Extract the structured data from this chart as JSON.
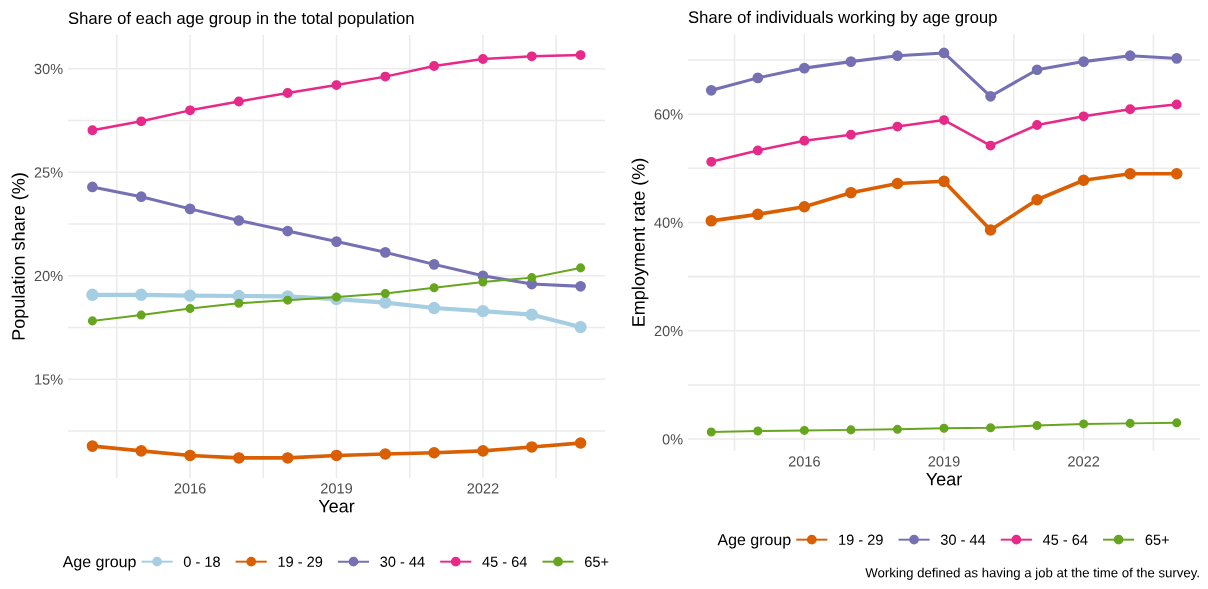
{
  "chart_data": [
    {
      "type": "line",
      "title": "Share of each age group in the total population",
      "xlabel": "Year",
      "ylabel": "Population share (%)",
      "legend_title": "Age group",
      "legend": "bottom",
      "marker": "circle",
      "line_style": "solid",
      "grid": true,
      "x": [
        2014,
        2015,
        2016,
        2017,
        2018,
        2019,
        2020,
        2021,
        2022,
        2023,
        2024
      ],
      "xlim": [
        2013.5,
        2024.5
      ],
      "xticks": [
        {
          "value": 2014.5,
          "label": null
        },
        2016,
        {
          "value": 2017.5,
          "label": null
        },
        2019,
        {
          "value": 2020.5,
          "label": null
        },
        2022,
        {
          "value": 2023.5,
          "label": null
        }
      ],
      "ylim": [
        10.23,
        31.63
      ],
      "yticks": [
        {
          "value": 12.5,
          "label": null
        },
        {
          "value": 15,
          "label": "15%"
        },
        {
          "value": 17.5,
          "label": null
        },
        {
          "value": 20,
          "label": "20%"
        },
        {
          "value": 22.5,
          "label": null
        },
        {
          "value": 25,
          "label": "25%"
        },
        {
          "value": 27.5,
          "label": null
        },
        {
          "value": 30,
          "label": "30%"
        }
      ],
      "series": [
        {
          "name": "0 - 18",
          "color": "#a6cee3",
          "values": [
            19.08,
            19.08,
            19.04,
            19.02,
            19.0,
            18.87,
            18.7,
            18.44,
            18.29,
            18.12,
            17.52
          ]
        },
        {
          "name": "19 - 29",
          "color": "#d95f02",
          "values": [
            11.77,
            11.54,
            11.32,
            11.2,
            11.2,
            11.32,
            11.39,
            11.45,
            11.54,
            11.73,
            11.92
          ]
        },
        {
          "name": "30 - 44",
          "color": "#7570b3",
          "values": [
            24.29,
            23.82,
            23.23,
            22.67,
            22.16,
            21.65,
            21.13,
            20.55,
            20.0,
            19.6,
            19.49
          ]
        },
        {
          "name": "45 - 64",
          "color": "#e7298a",
          "values": [
            27.03,
            27.46,
            27.99,
            28.42,
            28.83,
            29.21,
            29.62,
            30.13,
            30.47,
            30.6,
            30.66
          ]
        },
        {
          "name": "65+",
          "color": "#66a61e",
          "values": [
            17.82,
            18.1,
            18.42,
            18.67,
            18.82,
            18.97,
            19.14,
            19.42,
            19.7,
            19.91,
            20.38
          ]
        }
      ]
    },
    {
      "type": "line",
      "title": "Share of individuals working by age group",
      "xlabel": "Year",
      "ylabel": "Employment rate (%)",
      "legend_title": "Age group",
      "legend": "bottom",
      "marker": "circle",
      "line_style": "solid",
      "grid": true,
      "annotations": [
        "Working defined as having a job at the time of the survey."
      ],
      "x": [
        2014,
        2015,
        2016,
        2017,
        2018,
        2019,
        2020,
        2021,
        2022,
        2023,
        2024
      ],
      "xlim": [
        2013.5,
        2024.5
      ],
      "xticks": [
        {
          "value": 2014.5,
          "label": null
        },
        2016,
        {
          "value": 2017.5,
          "label": null
        },
        2019,
        {
          "value": 2020.5,
          "label": null
        },
        2022,
        {
          "value": 2023.5,
          "label": null
        }
      ],
      "ylim": [
        -2.2,
        74.8
      ],
      "yticks": [
        {
          "value": 0,
          "label": "0%"
        },
        {
          "value": 10,
          "label": null
        },
        {
          "value": 20,
          "label": "20%"
        },
        {
          "value": 30,
          "label": null
        },
        {
          "value": 40,
          "label": "40%"
        },
        {
          "value": 50,
          "label": null
        },
        {
          "value": 60,
          "label": "60%"
        },
        {
          "value": 70,
          "label": null
        }
      ],
      "series": [
        {
          "name": "19 - 29",
          "color": "#d95f02",
          "values": [
            40.3,
            41.5,
            42.9,
            45.5,
            47.2,
            47.6,
            38.6,
            44.2,
            47.8,
            49.0,
            49.0
          ]
        },
        {
          "name": "30 - 44",
          "color": "#7570b3",
          "values": [
            64.4,
            66.7,
            68.5,
            69.7,
            70.8,
            71.3,
            63.3,
            68.2,
            69.7,
            70.8,
            70.3
          ]
        },
        {
          "name": "45 - 64",
          "color": "#e7298a",
          "values": [
            51.2,
            53.3,
            55.1,
            56.2,
            57.7,
            58.9,
            54.2,
            58.0,
            59.6,
            60.9,
            61.8
          ]
        },
        {
          "name": "65+",
          "color": "#66a61e",
          "values": [
            1.3,
            1.5,
            1.6,
            1.7,
            1.8,
            2.0,
            2.1,
            2.5,
            2.8,
            2.9,
            3.0
          ]
        }
      ]
    }
  ]
}
